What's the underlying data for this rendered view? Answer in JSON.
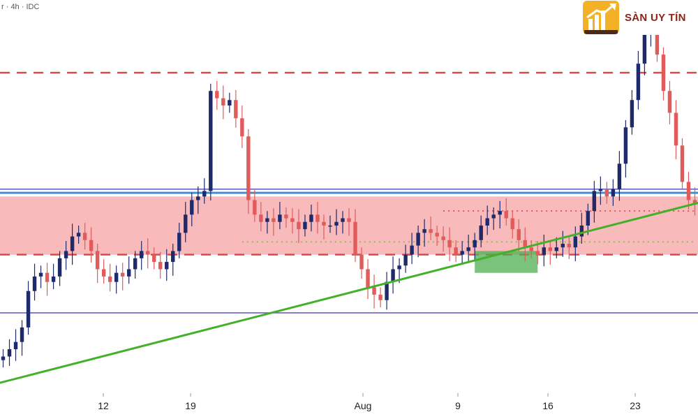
{
  "header": {
    "symbol_text": "r · 4h · IDC"
  },
  "logo": {
    "text": "SÀN UY TÍN",
    "brand_color": "#f3b128",
    "text_color": "#8b2418",
    "icon": "bar-chart-arrow-icon"
  },
  "colors": {
    "bull_candle": "#1f2a6b",
    "bear_candle": "#e15b5b",
    "zone_fill": "#f7b3b3",
    "dashed_line": "#e04848",
    "blue_line": "#3d8fd6",
    "purple_line": "#5b55c7",
    "trend_line": "#43b02a",
    "highlight_box": "#4caf50",
    "dotted_red": "#e15b5b",
    "dotted_green": "#8bc34a"
  },
  "x_axis": {
    "tick_labels": [
      "12",
      "19",
      "Aug",
      "9",
      "16",
      "23"
    ]
  },
  "chart_data": {
    "type": "candlestick",
    "timeframe": "4h",
    "x_ticks": [
      "12",
      "19",
      "Aug",
      "9",
      "16",
      "23"
    ],
    "price_scale_visible": false,
    "grid": false,
    "closes": [
      0.14,
      0.18,
      0.22,
      0.3,
      0.5,
      0.58,
      0.6,
      0.55,
      0.58,
      0.68,
      0.72,
      0.8,
      0.82,
      0.78,
      0.72,
      0.62,
      0.58,
      0.55,
      0.6,
      0.58,
      0.62,
      0.68,
      0.72,
      0.7,
      0.66,
      0.62,
      0.66,
      0.72,
      0.82,
      0.92,
      1.0,
      1.02,
      1.05,
      1.6,
      1.56,
      1.52,
      1.55,
      1.45,
      1.35,
      1.0,
      0.92,
      0.88,
      0.9,
      0.88,
      0.92,
      0.9,
      0.88,
      0.84,
      0.88,
      0.92,
      0.88,
      0.86,
      0.86,
      0.88,
      0.9,
      0.88,
      0.7,
      0.62,
      0.52,
      0.48,
      0.45,
      0.55,
      0.62,
      0.64,
      0.7,
      0.75,
      0.82,
      0.84,
      0.82,
      0.8,
      0.78,
      0.74,
      0.7,
      0.72,
      0.74,
      0.78,
      0.86,
      0.9,
      0.92,
      0.94,
      0.9,
      0.84,
      0.78,
      0.74,
      0.72,
      0.7,
      0.74,
      0.72,
      0.74,
      0.76,
      0.74,
      0.8,
      0.86,
      0.94,
      1.05,
      1.06,
      1.02,
      1.06,
      1.2,
      1.4,
      1.55,
      1.75,
      1.92,
      2.0,
      1.8,
      1.6,
      1.48,
      1.3,
      1.1,
      1.0,
      0.98
    ],
    "levels": {
      "upper_dashed": 1.7,
      "blue_line": 1.04,
      "purple_upper": 1.06,
      "zone_top": 1.02,
      "zone_bottom": 0.7,
      "lower_dashed": 0.7,
      "purple_lower": 0.38
    },
    "trend_line": {
      "start_index": 0,
      "start_value": 0.0,
      "end_index": 110,
      "end_value": 0.98
    },
    "highlight_box": {
      "from_index": 75,
      "to_index": 85,
      "top": 0.72,
      "bottom": 0.6
    },
    "dotted_red_level": {
      "from_index": 70,
      "to_index": 110,
      "value": 0.94
    },
    "dotted_green_level": {
      "from_index": 38,
      "to_index": 110,
      "value": 0.77
    }
  }
}
